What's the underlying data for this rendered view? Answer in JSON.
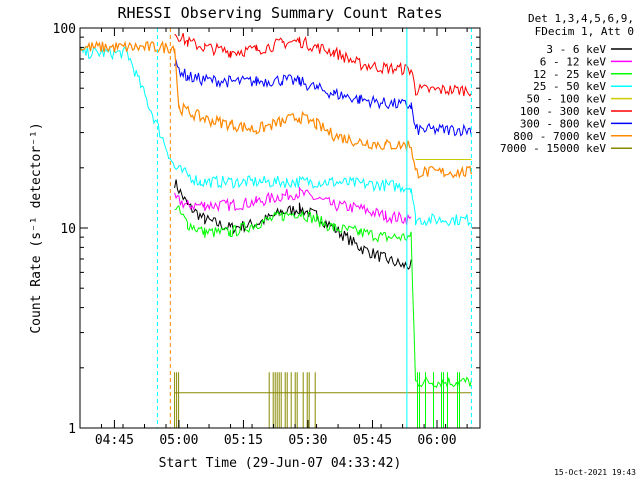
{
  "chart_data": {
    "type": "line",
    "title": "RHESSI Observing Summary Count Rates",
    "xlabel": "Start Time (29-Jun-07 04:33:42)",
    "ylabel": "Count Rate (s⁻¹ detector⁻¹)",
    "yscale": "log",
    "ylim": [
      1,
      100
    ],
    "xlim": [
      "04:37",
      "06:10"
    ],
    "x_tick_labels": [
      "04:45",
      "05:00",
      "05:15",
      "05:30",
      "05:45",
      "06:00"
    ],
    "y_tick_labels": [
      "1",
      "10",
      "100"
    ],
    "legend_header": [
      "Det 1,3,4,5,6,9,",
      "FDecim 1, Att 0"
    ],
    "legend_position": "right",
    "timestamp": "15-Oct-2021 19:43",
    "data_gap_end": "04:59",
    "series": [
      {
        "name": "3 - 6 keV",
        "color": "#000000",
        "x": [
          "04:59",
          "05:02",
          "05:06",
          "05:12",
          "05:18",
          "05:24",
          "05:28",
          "05:32",
          "05:36",
          "05:42",
          "05:48",
          "05:52",
          "05:54"
        ],
        "y": [
          17,
          13,
          11,
          10,
          10.5,
          12,
          12.5,
          11.5,
          10,
          8,
          7,
          6.5,
          6.5
        ]
      },
      {
        "name": "6 - 12 keV",
        "color": "#ff00ff",
        "x": [
          "04:59",
          "05:02",
          "05:06",
          "05:12",
          "05:18",
          "05:24",
          "05:28",
          "05:32",
          "05:36",
          "05:42",
          "05:48",
          "05:54"
        ],
        "y": [
          14,
          13,
          13,
          13,
          13.5,
          14.5,
          15,
          14,
          13,
          12.5,
          11.5,
          11
        ]
      },
      {
        "name": "12 - 25 keV",
        "color": "#00ff00",
        "x": [
          "04:59",
          "05:02",
          "05:06",
          "05:12",
          "05:18",
          "05:24",
          "05:28",
          "05:32",
          "05:36",
          "05:42",
          "05:48",
          "05:54",
          "05:55",
          "06:08"
        ],
        "y": [
          13,
          10.5,
          9.5,
          9.5,
          10.5,
          11.5,
          12,
          11,
          10,
          9.5,
          9,
          9,
          1.7,
          1.7
        ]
      },
      {
        "name": "25 - 50 keV",
        "color": "#00ffff",
        "x": [
          "04:37",
          "04:48",
          "04:59",
          "05:05",
          "05:15",
          "05:25",
          "05:35",
          "05:45",
          "05:54",
          "05:55",
          "06:08"
        ],
        "y": [
          75,
          75,
          20,
          17,
          17,
          17,
          17,
          16.5,
          16,
          11,
          11
        ]
      },
      {
        "name": "50 - 100 keV",
        "color": "#cccc00",
        "x": [
          "05:55",
          "06:08"
        ],
        "y": [
          22,
          22
        ]
      },
      {
        "name": "100 - 300 keV",
        "color": "#ff0000",
        "x": [
          "04:59",
          "05:02",
          "05:06",
          "05:12",
          "05:18",
          "05:24",
          "05:28",
          "05:32",
          "05:36",
          "05:42",
          "05:48",
          "05:54",
          "05:55",
          "06:08"
        ],
        "y": [
          95,
          85,
          80,
          76,
          78,
          84,
          86,
          80,
          76,
          66,
          63,
          62,
          49,
          49
        ]
      },
      {
        "name": "300 - 800 keV",
        "color": "#0000ff",
        "x": [
          "04:59",
          "05:02",
          "05:06",
          "05:12",
          "05:18",
          "05:24",
          "05:28",
          "05:32",
          "05:36",
          "05:42",
          "05:48",
          "05:54",
          "05:55",
          "06:08"
        ],
        "y": [
          65,
          57,
          55,
          54,
          54,
          55,
          54,
          50,
          47,
          44,
          42,
          41,
          31,
          31
        ]
      },
      {
        "name": "800 - 7000 keV",
        "color": "#ff8800",
        "x": [
          "04:37",
          "04:59",
          "05:00",
          "05:06",
          "05:12",
          "05:18",
          "05:24",
          "05:28",
          "05:32",
          "05:36",
          "05:42",
          "05:48",
          "05:54",
          "05:55",
          "06:08"
        ],
        "y": [
          80,
          80,
          40,
          35,
          33,
          31,
          34,
          36,
          33,
          29,
          27,
          26,
          26,
          19,
          19
        ]
      },
      {
        "name": "7000 - 15000 keV",
        "color": "#888800",
        "x": [
          "04:59",
          "05:24",
          "05:33",
          "06:08"
        ],
        "y": [
          1.5,
          1.5,
          1.5,
          1.5
        ]
      }
    ]
  }
}
